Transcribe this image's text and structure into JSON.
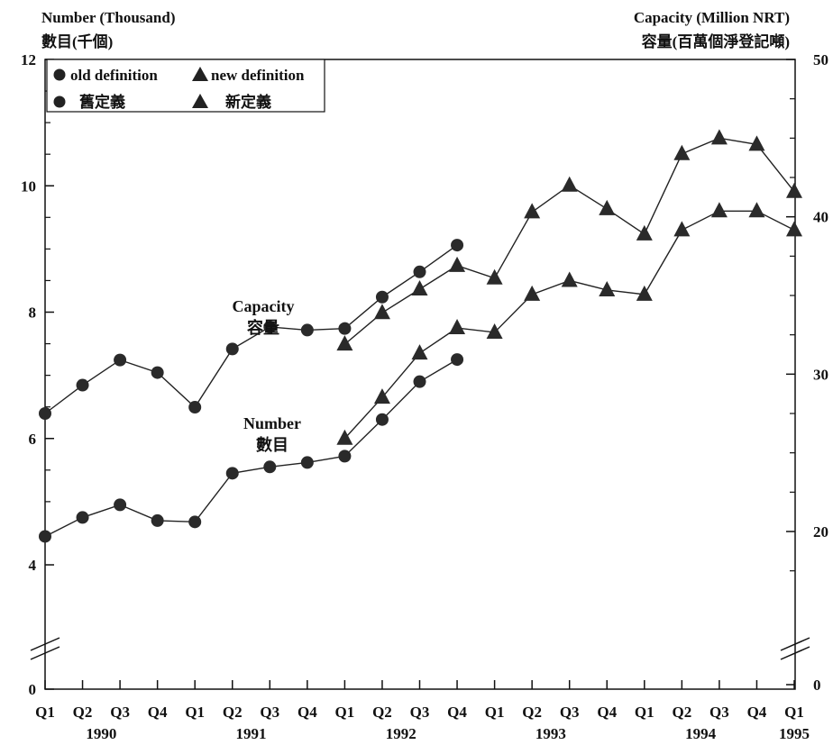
{
  "chart_data": {
    "type": "line",
    "left_axis": {
      "title": "Number (Thousand)",
      "title_zh": "數目(千個)",
      "ticks": [
        "0",
        "4",
        "6",
        "8",
        "10",
        "12"
      ],
      "ylim": [
        3,
        12
      ],
      "broken": true
    },
    "right_axis": {
      "title": "Capacity (Million NRT)",
      "title_zh": "容量(百萬個淨登記噸)",
      "ticks": [
        "0",
        "20",
        "30",
        "40",
        "50"
      ],
      "ylim": [
        12.5,
        50
      ],
      "broken": true
    },
    "x": {
      "quarters": [
        "Q1",
        "Q2",
        "Q3",
        "Q4",
        "Q1",
        "Q2",
        "Q3",
        "Q4",
        "Q1",
        "Q2",
        "Q3",
        "Q4",
        "Q1",
        "Q2",
        "Q3",
        "Q4",
        "Q1",
        "Q2",
        "Q3",
        "Q4",
        "Q1"
      ],
      "years": [
        "1990",
        "1991",
        "1992",
        "1993",
        "1994",
        "1995"
      ]
    },
    "legend": {
      "position": "top-left",
      "entries": [
        {
          "marker": "circle",
          "label": "old definition",
          "label_zh": "舊定義"
        },
        {
          "marker": "triangle",
          "label": "new definition",
          "label_zh": "新定義"
        }
      ]
    },
    "annotations": {
      "capacity": "Capacity",
      "capacity_zh": "容量",
      "number": "Number",
      "number_zh": "數目"
    },
    "series": [
      {
        "axis": "right",
        "definition": "old",
        "x": [
          0,
          1,
          2,
          3,
          4,
          5,
          6,
          7,
          8,
          9,
          10,
          11
        ],
        "values": [
          27.5,
          29.3,
          30.9,
          30.1,
          27.9,
          31.6,
          33.0,
          32.8,
          32.9,
          34.9,
          36.5,
          38.2
        ]
      },
      {
        "axis": "right",
        "definition": "new",
        "x": [
          8,
          9,
          10,
          11,
          12,
          13,
          14,
          15,
          16,
          17,
          18,
          19,
          20
        ],
        "values": [
          31.9,
          33.9,
          35.4,
          36.9,
          36.1,
          40.3,
          42.0,
          40.5,
          38.9,
          44.0,
          45.0,
          44.6,
          41.6
        ]
      },
      {
        "axis": "left",
        "definition": "old",
        "x": [
          0,
          1,
          2,
          3,
          4,
          5,
          6,
          7,
          8,
          9,
          10,
          11
        ],
        "values": [
          4.45,
          4.75,
          4.95,
          4.7,
          4.68,
          5.45,
          5.55,
          5.62,
          5.72,
          6.3,
          6.9,
          7.25
        ]
      },
      {
        "axis": "left",
        "definition": "new",
        "x": [
          8,
          9,
          10,
          11,
          12,
          13,
          14,
          15,
          16,
          17,
          18,
          19,
          20
        ],
        "values": [
          6.0,
          6.65,
          7.35,
          7.75,
          7.68,
          8.28,
          8.5,
          8.35,
          8.28,
          9.3,
          9.6,
          9.6,
          9.3
        ]
      }
    ]
  },
  "colors": {
    "ink": "#111111",
    "background": "#ffffff"
  }
}
